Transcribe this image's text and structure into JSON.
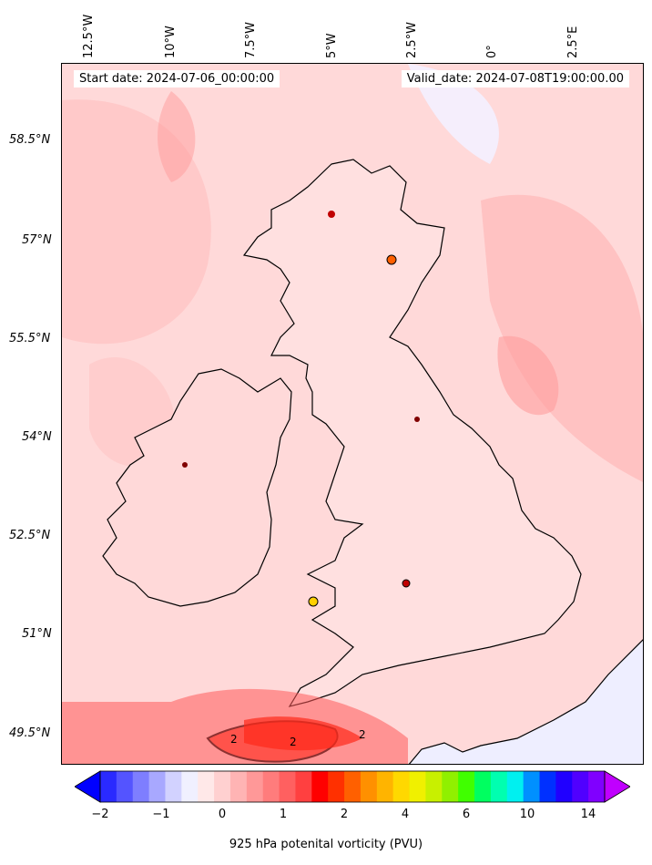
{
  "map": {
    "start_date": "Start date: 2024-07-06_00:00:00",
    "valid_date": "Valid_date: 2024-07-08T19:00:00.00",
    "contour_labels": [
      "2",
      "2",
      "2"
    ],
    "lat_labels": [
      "58.5°N",
      "57°N",
      "55.5°N",
      "54°N",
      "52.5°N",
      "51°N",
      "49.5°N"
    ],
    "lon_labels": [
      "12.5°W",
      "10°W",
      "7.5°W",
      "5°W",
      "2.5°W",
      "0°",
      "2.5°E"
    ],
    "colors": {
      "land_border": "#000000",
      "background_field": "#ffd9d9",
      "contour": "#000000"
    }
  },
  "colorbar": {
    "label": "925 hPa potenital vorticity (PVU)",
    "ticks": [
      "−2",
      "−1",
      "0",
      "1",
      "2",
      "4",
      "6",
      "10",
      "14"
    ],
    "colors": [
      "#0000ff",
      "#2a2aff",
      "#5454ff",
      "#7e7eff",
      "#a8a8ff",
      "#d2d2ff",
      "#f0f0ff",
      "#ffe8e8",
      "#ffd0d0",
      "#ffb4b4",
      "#ff9898",
      "#ff7c7c",
      "#ff6060",
      "#ff4040",
      "#ff0000",
      "#ff3000",
      "#ff6000",
      "#ff9000",
      "#ffb400",
      "#ffd800",
      "#f0f000",
      "#c8f000",
      "#90f000",
      "#40ff00",
      "#00ff60",
      "#00ffb0",
      "#00f0f0",
      "#0090ff",
      "#0030ff",
      "#2000ff",
      "#5000ff",
      "#8000ff",
      "#c000ff"
    ]
  }
}
